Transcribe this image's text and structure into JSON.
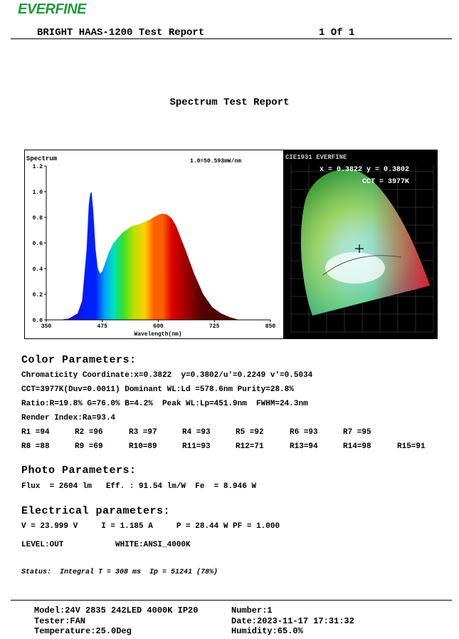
{
  "header": {
    "logo": "EVERFINE",
    "report_name": "BRIGHT HAAS-1200 Test Report",
    "page": "1 Of 1"
  },
  "title": "Spectrum Test Report",
  "chart_data": [
    {
      "type": "area",
      "title": "Spectrum",
      "subtitle": "1.0=50.593mW/nm",
      "xlabel": "Wavelength(nm)",
      "ylabel": "",
      "xlim": [
        350,
        850
      ],
      "ylim": [
        0,
        1.2
      ],
      "x_ticks": [
        "350",
        "475",
        "600",
        "725",
        "850"
      ],
      "y_ticks": [
        "0.0",
        "0.2",
        "0.4",
        "0.6",
        "0.8",
        "1.0",
        "1.2"
      ],
      "x": [
        380,
        400,
        420,
        430,
        440,
        445,
        448,
        451,
        455,
        460,
        465,
        470,
        475,
        480,
        490,
        500,
        520,
        540,
        560,
        580,
        600,
        610,
        620,
        630,
        640,
        660,
        680,
        700,
        720,
        740,
        760,
        780
      ],
      "values": [
        0.0,
        0.01,
        0.05,
        0.15,
        0.55,
        0.9,
        0.98,
        1.0,
        0.85,
        0.55,
        0.4,
        0.36,
        0.38,
        0.43,
        0.53,
        0.6,
        0.68,
        0.73,
        0.75,
        0.78,
        0.82,
        0.83,
        0.82,
        0.79,
        0.73,
        0.55,
        0.36,
        0.2,
        0.1,
        0.05,
        0.02,
        0.0
      ],
      "grid": false
    },
    {
      "type": "scatter",
      "title": "CIE1931 EVERFINE",
      "annotation": "x = 0.3822  y = 0.3802",
      "cct_label": "CCT = 3977K",
      "x": [
        0.3822
      ],
      "values": [
        0.3802
      ]
    }
  ],
  "color": {
    "heading": "Color Parameters:",
    "lines": [
      "Chromaticity Coordinate:x=0.3822  y=0.3802/u'=0.2249 v'=0.5034",
      "CCT=3977K(Duv=0.0011) Dominant WL:Ld =578.6nm Purity=28.8%",
      "Ratio:R=19.8% G=76.0% B=4.2%  Peak WL:Lp=451.9nm  FWHM=24.3nm",
      "Render Index:Ra=93.4"
    ],
    "r_row1": [
      "R1 =94",
      "R2 =96",
      "R3 =97",
      "R4 =93",
      "R5 =92",
      "R6 =93",
      "R7 =95"
    ],
    "r_row2": [
      "R8 =88",
      "R9 =69",
      "R10=89",
      "R11=93",
      "R12=71",
      "R13=94",
      "R14=98",
      "R15=91"
    ]
  },
  "photo": {
    "heading": "Photo Parameters:",
    "line": "Flux  = 2604 lm   Eff. : 91.54 lm/W  Fe  = 8.946 W"
  },
  "electrical": {
    "heading": "Electrical parameters:",
    "line": "V = 23.999 V     I = 1.185 A     P = 28.44 W PF = 1.000",
    "level": "LEVEL:OUT",
    "white": "WHITE:ANSI_4000K"
  },
  "status": "Status:  Integral T = 308 ms  Ip = 51241 (78%)",
  "footer": {
    "model": "Model:24V 2835 242LED 4000K IP20",
    "number": "Number:1",
    "tester": "Tester:FAN",
    "date": "Date:2023-11-17 17:31:32",
    "temperature": "Temperature:25.0Deg",
    "humidity": "Humidity:65.0%"
  },
  "colors": {
    "logo": "#1e9a3a",
    "cie_background": "#000000"
  }
}
